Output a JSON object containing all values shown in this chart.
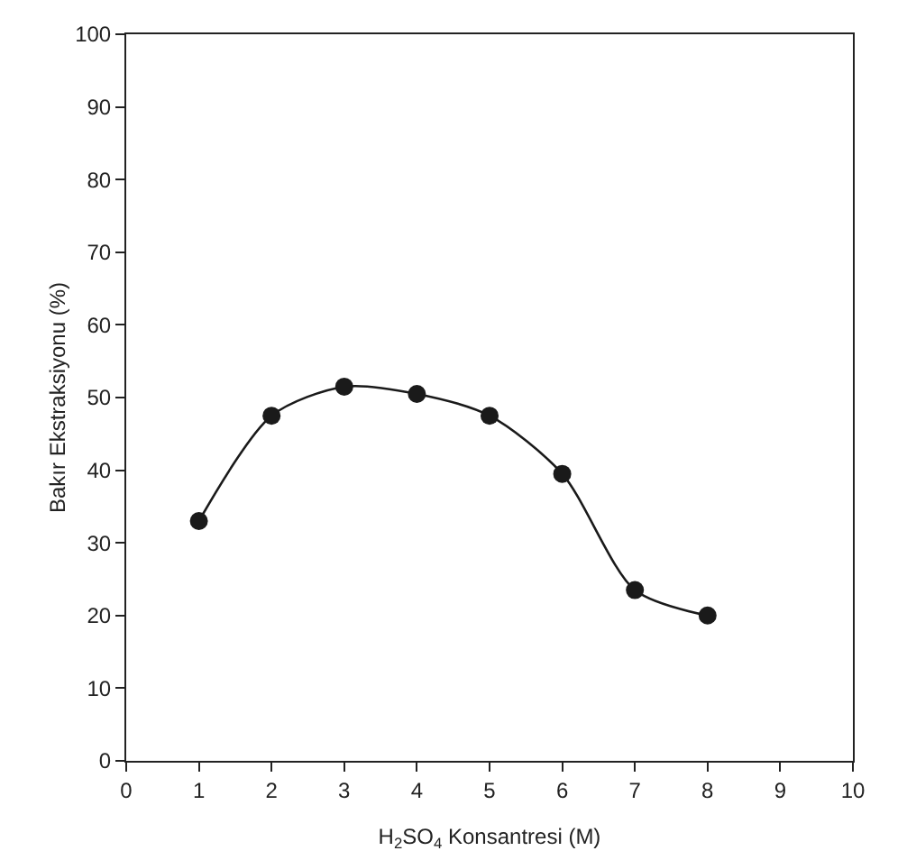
{
  "chart_data": {
    "type": "line",
    "xlabel": "H$_{2}$SO$_{4}$ Konsantresi (M)",
    "ylabel": "Bakır Ekstraksiyonu (%)",
    "x": [
      1,
      2,
      3,
      4,
      5,
      6,
      7,
      8
    ],
    "series": [
      {
        "color": "#1a1a1a",
        "values": [
          33,
          47.5,
          51.5,
          50.5,
          47.5,
          39.5,
          23.5,
          20
        ]
      }
    ],
    "xlim": [
      0,
      10
    ],
    "xticks": [
      0,
      1,
      2,
      3,
      4,
      5,
      6,
      7,
      8,
      9,
      10
    ],
    "ylim": [
      0,
      100
    ],
    "yticks": [
      0,
      10,
      20,
      30,
      40,
      50,
      60,
      70,
      80,
      90,
      100
    ],
    "grid": false,
    "marker": "circle",
    "line_style": "solid"
  }
}
